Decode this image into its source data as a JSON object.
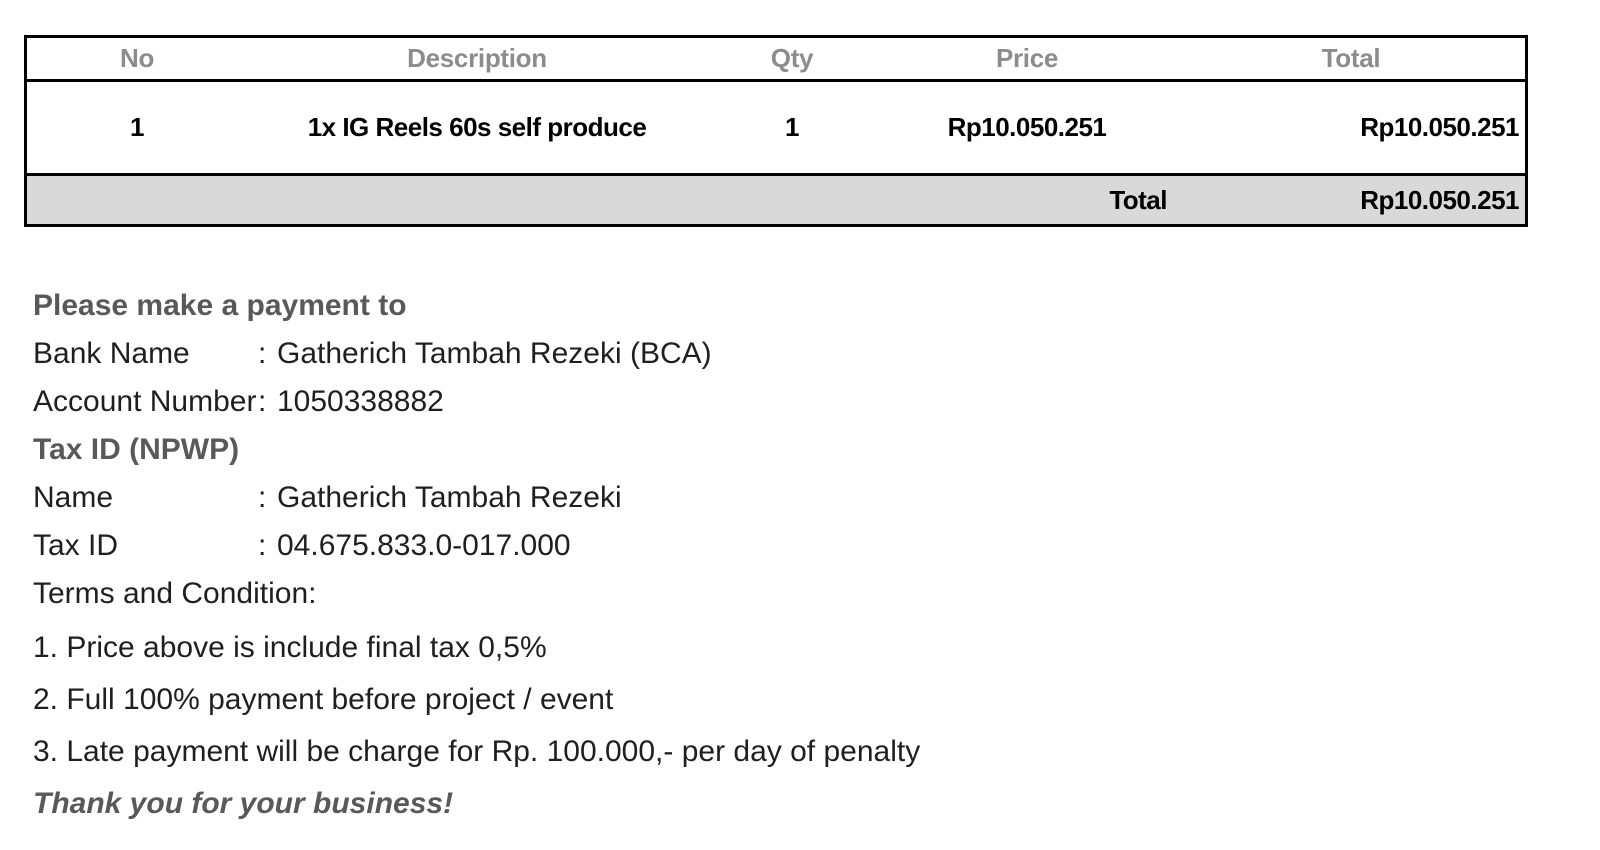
{
  "colors": {
    "table_border": "#000000",
    "table_header_text": "#8c8c8c",
    "table_body_text": "#000000",
    "total_row_bg": "#d9d9d9",
    "heading_gray": "#595959",
    "body_text": "#1f1f1f",
    "page_bg": "#ffffff"
  },
  "table": {
    "headers": {
      "no": "No",
      "description": "Description",
      "qty": "Qty",
      "price": "Price",
      "total": "Total"
    },
    "item": {
      "no": "1",
      "description": "1x IG Reels 60s self produce",
      "qty": "1",
      "price": "Rp10.050.251",
      "total": "Rp10.050.251"
    },
    "footer": {
      "label": "Total",
      "value": "Rp10.050.251"
    }
  },
  "payment": {
    "heading": "Please make a payment to",
    "colon": ":",
    "bank_name_label": "Bank Name",
    "bank_name_value": "Gatherich Tambah Rezeki (BCA)",
    "account_label": "Account Number",
    "account_value": "1050338882",
    "tax_section_heading": "Tax ID (NPWP)",
    "name_label": "Name",
    "name_value": "Gatherich Tambah Rezeki",
    "tax_id_label": "Tax ID",
    "tax_id_value": "04.675.833.0-017.000"
  },
  "terms": {
    "heading": "Terms and Condition:",
    "item_1": "1. Price above is include final tax 0,5%",
    "item_2": "2. Full 100% payment before project / event",
    "item_3": "3. Late payment will be charge for Rp. 100.000,- per day of penalty"
  },
  "closing": "Thank you for your business!"
}
